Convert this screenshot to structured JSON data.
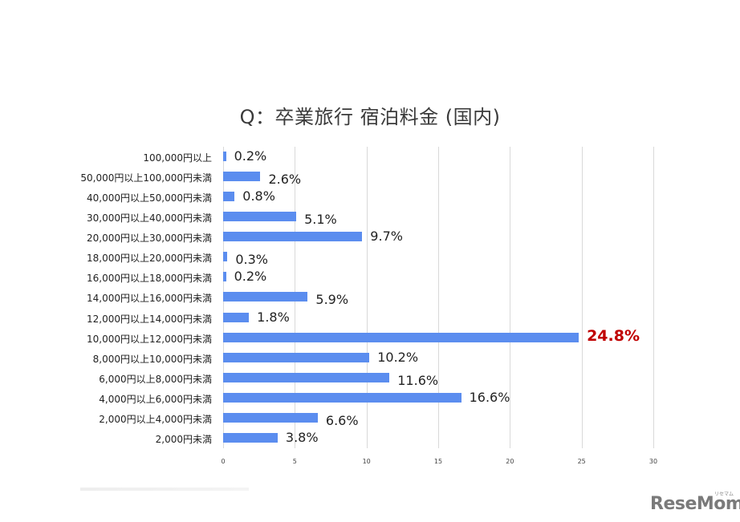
{
  "chart_data": {
    "type": "bar",
    "orientation": "horizontal",
    "title": "Q：卒業旅行 宿泊料金 (国内)",
    "xlabel": "",
    "ylabel": "",
    "xlim": [
      0,
      30
    ],
    "xticks": [
      "0",
      "5",
      "10",
      "15",
      "20",
      "25",
      "30"
    ],
    "grid": true,
    "legend": null,
    "categories": [
      "100,000円以上",
      "50,000円以上100,000円未満",
      "40,000円以上50,000円未満",
      "30,000円以上40,000円未満",
      "20,000円以上30,000円未満",
      "18,000円以上20,000円未満",
      "16,000円以上18,000円未満",
      "14,000円以上16,000円未満",
      "12,000円以上14,000円未満",
      "10,000円以上12,000円未満",
      "8,000円以上10,000円未満",
      "6,000円以上8,000円未満",
      "4,000円以上6,000円未満",
      "2,000円以上4,000円未満",
      "2,000円未満"
    ],
    "values": [
      0.2,
      2.6,
      0.8,
      5.1,
      9.7,
      0.3,
      0.2,
      5.9,
      1.8,
      24.8,
      10.2,
      11.6,
      16.6,
      6.6,
      3.8
    ],
    "labels": [
      "0.2%",
      "2.6%",
      "0.8%",
      "5.1%",
      "9.7%",
      "0.3%",
      "0.2%",
      "5.9%",
      "1.8%",
      "24.8%",
      "10.2%",
      "11.6%",
      "16.6%",
      "6.6%",
      "3.8%"
    ],
    "highlight_index": 9,
    "colors": {
      "bar": "#5b8def",
      "highlight_label": "#c00000",
      "grid": "#d9d9d9"
    }
  },
  "logo": {
    "text": "ReseMom",
    "ruby": "リセマム"
  }
}
